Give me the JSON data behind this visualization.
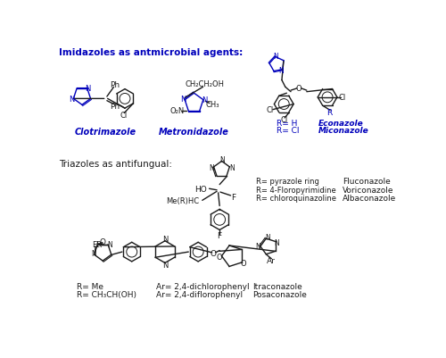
{
  "background_color": "#ffffff",
  "section1_title": "Imidazoles as antmicrobial agents:",
  "section2_title": "Triazoles as antifungual:",
  "blue": "#0000bb",
  "black": "#1a1a1a",
  "figsize": [
    5.0,
    4.02
  ],
  "dpi": 100,
  "clotrimazole_label": "Clotrimazole",
  "metronidazole_label": "Metronidazole",
  "econazole_label": "Econazole",
  "miconazole_label": "Miconazole",
  "fluconazole_label": "Fluconazole",
  "voriconazole_label": "Voriconazole",
  "albaconazole_label": "Albaconazole",
  "itraconazole_label": "Itraconazole",
  "posaconazole_label": "Posaconazole"
}
